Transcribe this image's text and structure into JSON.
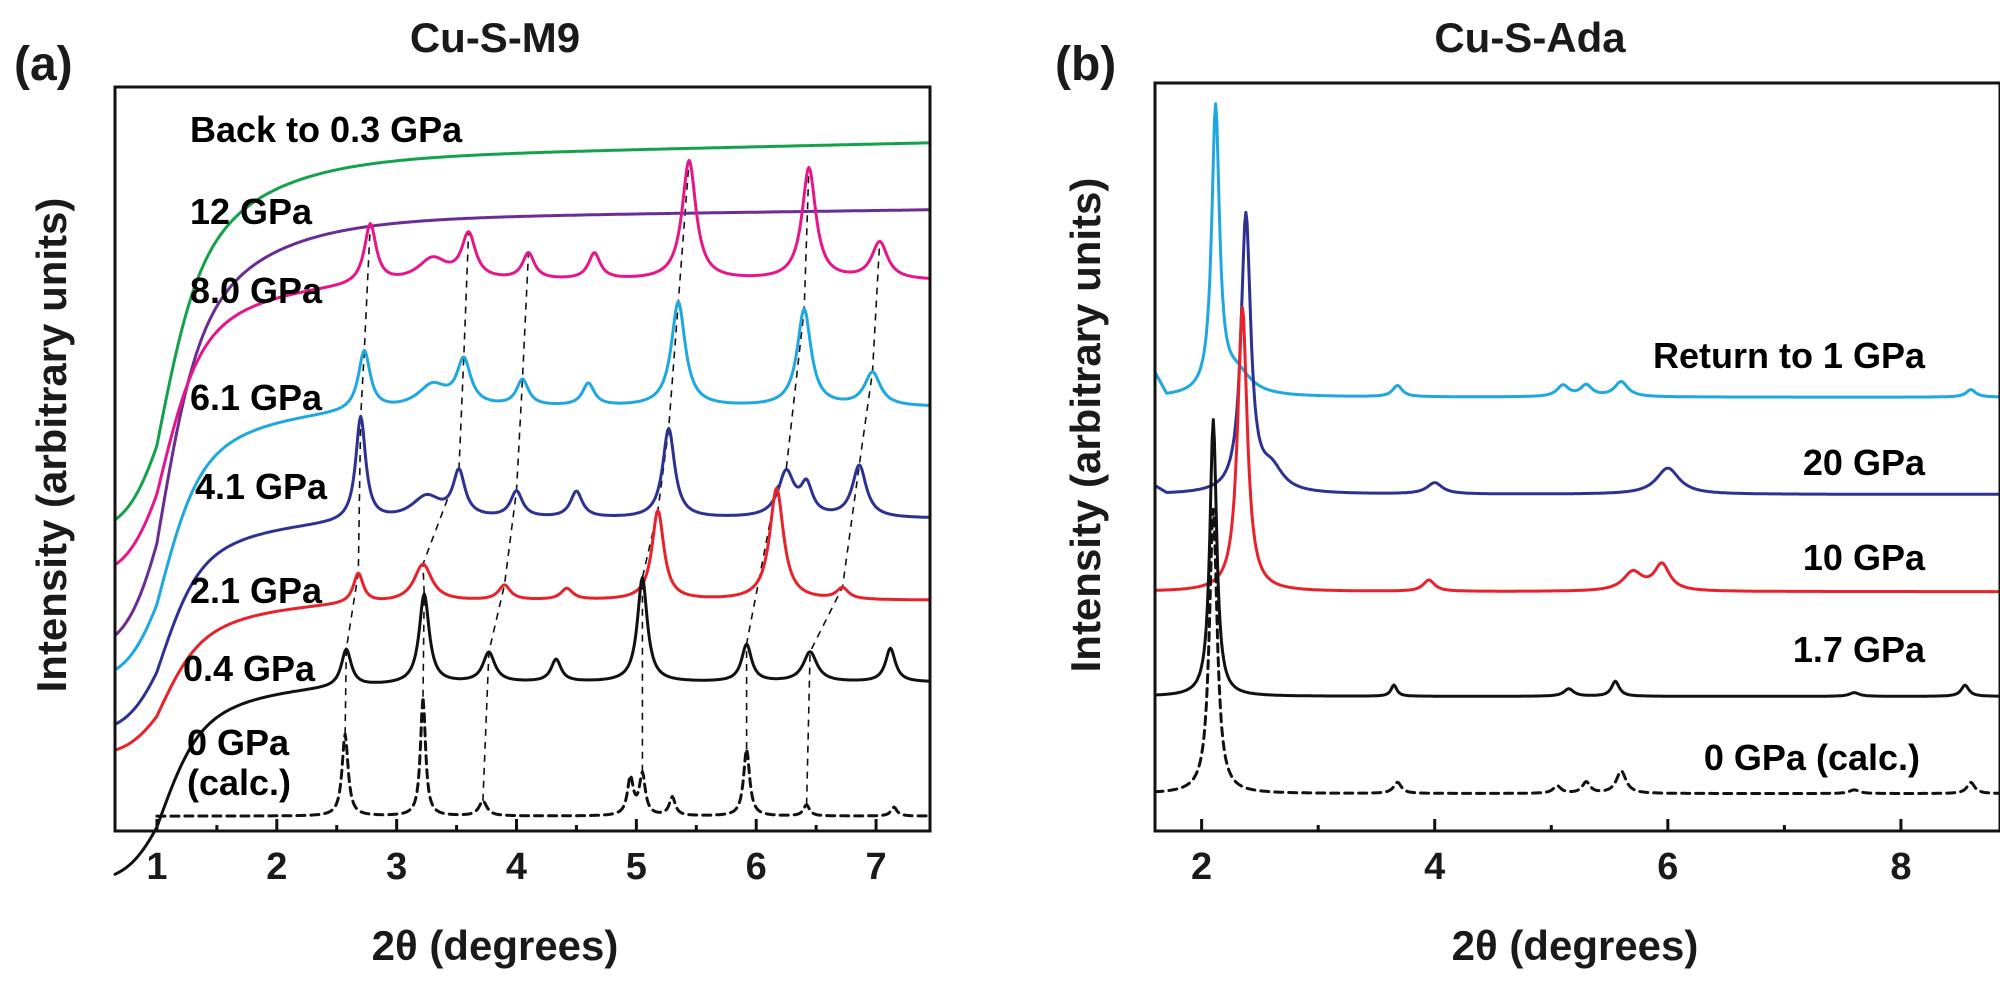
{
  "chart_data": [
    {
      "type": "line",
      "panel_label": "(a)",
      "title": "Cu-S-M9",
      "xlabel": "2θ (degrees)",
      "ylabel": "Intensity (arbitrary units)",
      "xlim": [
        0.65,
        7.45
      ],
      "x_ticks": [
        1,
        2,
        3,
        4,
        5,
        6,
        7
      ],
      "y_ticks": "none",
      "grid": false,
      "legend": "inline labels next to each trace",
      "series": [
        {
          "name": "Back to 0.3 GPa",
          "color": "#13a14a",
          "style": "solid",
          "base": 0.9,
          "start": 0.62,
          "rise": 0.22,
          "drift": 0.025,
          "peaks": []
        },
        {
          "name": "12 GPa",
          "color": "#6a2d91",
          "style": "solid",
          "base": 0.82,
          "start": 0.47,
          "rise": 0.23,
          "drift": 0.015,
          "peaks": []
        },
        {
          "name": "8.0 GPa",
          "color": "#e6168a",
          "style": "solid",
          "base": 0.74,
          "start": 0.47,
          "rise": 0.13,
          "drift": 0.0,
          "peaks": [
            [
              2.78,
              0.08,
              0.06
            ],
            [
              3.3,
              0.03,
              0.15
            ],
            [
              3.6,
              0.06,
              0.07
            ],
            [
              4.1,
              0.035,
              0.06
            ],
            [
              4.65,
              0.035,
              0.06
            ],
            [
              5.44,
              0.16,
              0.07
            ],
            [
              6.44,
              0.15,
              0.07
            ],
            [
              7.03,
              0.05,
              0.08
            ]
          ]
        },
        {
          "name": "6.1 GPa",
          "color": "#1fa8e0",
          "style": "solid",
          "base": 0.57,
          "start": 0.32,
          "rise": 0.12,
          "drift": 0.0,
          "peaks": [
            [
              2.73,
              0.08,
              0.06
            ],
            [
              3.3,
              0.03,
              0.15
            ],
            [
              3.56,
              0.06,
              0.07
            ],
            [
              4.05,
              0.035,
              0.06
            ],
            [
              4.6,
              0.03,
              0.06
            ],
            [
              5.35,
              0.14,
              0.07
            ],
            [
              6.4,
              0.13,
              0.07
            ],
            [
              6.97,
              0.045,
              0.08
            ]
          ]
        },
        {
          "name": "4.1 GPa",
          "color": "#2e3192",
          "style": "solid",
          "base": 0.42,
          "start": 0.22,
          "rise": 0.09,
          "drift": 0.0,
          "peaks": [
            [
              2.7,
              0.14,
              0.05
            ],
            [
              3.25,
              0.03,
              0.15
            ],
            [
              3.52,
              0.06,
              0.06
            ],
            [
              4.0,
              0.035,
              0.06
            ],
            [
              4.5,
              0.035,
              0.06
            ],
            [
              5.27,
              0.12,
              0.06
            ],
            [
              6.25,
              0.06,
              0.08
            ],
            [
              6.42,
              0.04,
              0.06
            ],
            [
              6.86,
              0.07,
              0.07
            ]
          ]
        },
        {
          "name": "2.1 GPa",
          "color": "#e8222a",
          "style": "solid",
          "base": 0.31,
          "start": 0.18,
          "rise": 0.08,
          "drift": 0.0,
          "peaks": [
            [
              2.68,
              0.04,
              0.05
            ],
            [
              3.22,
              0.05,
              0.09
            ],
            [
              3.9,
              0.02,
              0.06
            ],
            [
              4.42,
              0.015,
              0.06
            ],
            [
              5.18,
              0.12,
              0.06
            ],
            [
              6.17,
              0.15,
              0.07
            ],
            [
              6.72,
              0.015,
              0.06
            ]
          ]
        },
        {
          "name": "0.4 GPa",
          "color": "#111111",
          "style": "solid",
          "base": 0.2,
          "start": 0.02,
          "rise": 0.09,
          "drift": 0.0,
          "peaks": [
            [
              2.58,
              0.05,
              0.05
            ],
            [
              3.23,
              0.12,
              0.05
            ],
            [
              3.77,
              0.04,
              0.06
            ],
            [
              4.33,
              0.03,
              0.05
            ],
            [
              5.05,
              0.14,
              0.05
            ],
            [
              5.92,
              0.05,
              0.05
            ],
            [
              6.45,
              0.04,
              0.07
            ],
            [
              7.12,
              0.045,
              0.05
            ]
          ]
        },
        {
          "name": "0 GPa (calc.)",
          "color": "#111111",
          "style": "dashed",
          "base": 0.02,
          "start": 0.02,
          "rise": 0.0,
          "drift": 0.0,
          "peaks": [
            [
              2.57,
              0.11,
              0.03
            ],
            [
              3.22,
              0.16,
              0.025
            ],
            [
              3.72,
              0.02,
              0.04
            ],
            [
              4.95,
              0.05,
              0.03
            ],
            [
              5.05,
              0.055,
              0.03
            ],
            [
              5.3,
              0.025,
              0.03
            ],
            [
              5.92,
              0.09,
              0.03
            ],
            [
              6.42,
              0.015,
              0.03
            ],
            [
              7.15,
              0.012,
              0.03
            ]
          ]
        }
      ]
    },
    {
      "type": "line",
      "panel_label": "(b)",
      "title": "Cu-S-Ada",
      "xlabel": "2θ (degrees)",
      "ylabel": "Intensity (arbitrary units)",
      "xlim": [
        1.6,
        8.85
      ],
      "x_ticks": [
        2,
        4,
        6,
        8
      ],
      "y_ticks": "none",
      "grid": false,
      "legend": "inline labels on the right of each trace",
      "series": [
        {
          "name": "Return to 1 GPa",
          "color": "#1fa8e0",
          "style": "solid",
          "base": 0.58,
          "tail": [
            0.61,
            1.7
          ],
          "peaks": [
            [
              2.12,
              0.38,
              0.04
            ],
            [
              2.3,
              0.03,
              0.15
            ],
            [
              3.68,
              0.015,
              0.05
            ],
            [
              5.1,
              0.015,
              0.06
            ],
            [
              5.3,
              0.015,
              0.06
            ],
            [
              5.6,
              0.02,
              0.07
            ],
            [
              8.6,
              0.01,
              0.05
            ]
          ]
        },
        {
          "name": "20 GPa",
          "color": "#2e3192",
          "style": "solid",
          "base": 0.45,
          "tail": [
            0.46,
            1.7
          ],
          "peaks": [
            [
              2.38,
              0.37,
              0.05
            ],
            [
              2.6,
              0.03,
              0.12
            ],
            [
              4.0,
              0.015,
              0.08
            ],
            [
              6.0,
              0.035,
              0.12
            ]
          ]
        },
        {
          "name": "10 GPa",
          "color": "#e8222a",
          "style": "solid",
          "base": 0.32,
          "tail": [
            0.39,
            1.6
          ],
          "peaks": [
            [
              2.35,
              0.38,
              0.05
            ],
            [
              3.95,
              0.015,
              0.06
            ],
            [
              5.7,
              0.025,
              0.1
            ],
            [
              5.95,
              0.035,
              0.08
            ]
          ]
        },
        {
          "name": "1.7 GPa",
          "color": "#111111",
          "style": "solid",
          "base": 0.18,
          "tail": [
            0.18,
            1.6
          ],
          "peaks": [
            [
              2.1,
              0.37,
              0.035
            ],
            [
              3.65,
              0.015,
              0.03
            ],
            [
              5.15,
              0.01,
              0.05
            ],
            [
              5.55,
              0.02,
              0.04
            ],
            [
              7.6,
              0.005,
              0.05
            ],
            [
              8.55,
              0.015,
              0.04
            ]
          ]
        },
        {
          "name": "0 GPa (calc.)",
          "color": "#111111",
          "style": "dashed",
          "base": 0.05,
          "tail": [
            0.05,
            1.6
          ],
          "peaks": [
            [
              2.1,
              0.38,
              0.04
            ],
            [
              3.68,
              0.015,
              0.04
            ],
            [
              5.05,
              0.01,
              0.04
            ],
            [
              5.3,
              0.015,
              0.04
            ],
            [
              5.6,
              0.03,
              0.05
            ],
            [
              7.6,
              0.005,
              0.05
            ],
            [
              8.6,
              0.015,
              0.04
            ]
          ]
        }
      ]
    }
  ]
}
